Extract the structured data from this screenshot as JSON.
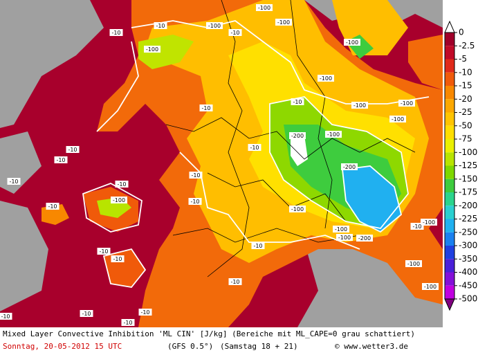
{
  "map": {
    "contour_labels": [
      "-10",
      "-100",
      "-10",
      "-100",
      "-100",
      "-100",
      "-10",
      "-10",
      "-10",
      "-10",
      "-10",
      "-10",
      "-100",
      "-10",
      "-10",
      "-10",
      "-10",
      "-10",
      "-10",
      "-10",
      "-100",
      "-100",
      "-100",
      "-100",
      "-100",
      "-200",
      "-100",
      "-200",
      "-100",
      "-100",
      "-200",
      "-100",
      "-100",
      "-10",
      "-100",
      "-100",
      "-10",
      "-10",
      "-10",
      "-10",
      "-10",
      "-10"
    ]
  },
  "legend": {
    "labels": [
      "0",
      "-2.5",
      "-5",
      "-10",
      "-15",
      "-20",
      "-25",
      "-50",
      "-75",
      "-100",
      "-125",
      "-150",
      "-175",
      "-200",
      "-225",
      "-250",
      "-300",
      "-350",
      "-400",
      "-450",
      "-500"
    ],
    "colors": [
      "#a0002a",
      "#c00a28",
      "#e02a1a",
      "#f05a0a",
      "#f88800",
      "#fca800",
      "#ffc400",
      "#ffde00",
      "#eaf000",
      "#b8e400",
      "#7ed800",
      "#3ecc3e",
      "#2ad48c",
      "#2ad0d0",
      "#20b0f0",
      "#1a80f0",
      "#2040e0",
      "#4a20d8",
      "#8410d8",
      "#c000e0"
    ],
    "top_color": "#ffffff",
    "bottom_color": "#800080"
  },
  "footer": {
    "title": "Mixed Layer Convective Inhibition 'ML CIN' [J/kg] (Bereiche mit ML_CAPE=0 grau schattiert)",
    "date": "Sonntag, 20-05-2012  15 UTC",
    "model": "(GFS 0.5°)",
    "run": "(Samstag 18 + 21)",
    "credit": "© www.wetter3.de"
  }
}
